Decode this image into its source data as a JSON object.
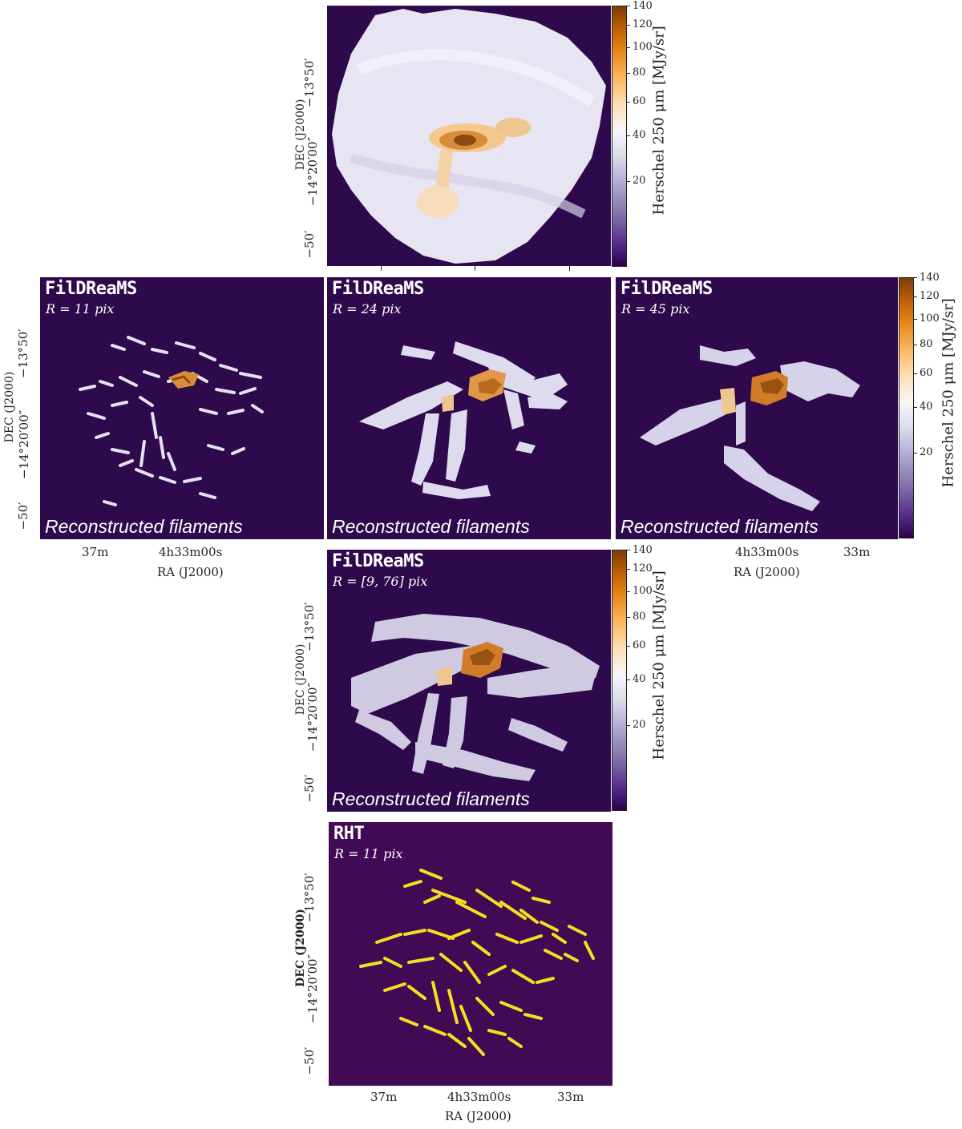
{
  "colorbar": {
    "label": "Herschel 250 μm [MJy/sr]",
    "ticks": [
      "140",
      "120",
      "100",
      "80",
      "60",
      "40",
      "20"
    ]
  },
  "axes": {
    "dec_label": "DEC (J2000)",
    "dec_ticks": [
      "−13°50′",
      "−14°20′00″",
      "−50′"
    ],
    "ra_label": "RA (J2000)",
    "ra_ticks": [
      "37m",
      "4h33m00s",
      "33m"
    ]
  },
  "panels": {
    "observed": {
      "title": "",
      "subtitle": "",
      "note": ""
    },
    "r11": {
      "title": "FilDReaMS",
      "subtitle": "R = 11 pix",
      "note": "Reconstructed filaments"
    },
    "r24": {
      "title": "FilDReaMS",
      "subtitle": "R = 24 pix",
      "note": "Reconstructed filaments"
    },
    "r45": {
      "title": "FilDReaMS",
      "subtitle": "R = 45 pix",
      "note": "Reconstructed filaments"
    },
    "rrange": {
      "title": "FilDReaMS",
      "subtitle": "R = [9, 76] pix",
      "note": "Reconstructed filaments"
    },
    "rht": {
      "title": "RHT",
      "subtitle": "R = 11 pix",
      "note": ""
    }
  },
  "colors": {
    "background": "#2e0a4d",
    "filament_light": "#dcd9ee",
    "filament_core": "#c97a2c",
    "rht_filament": "#f2e020"
  }
}
